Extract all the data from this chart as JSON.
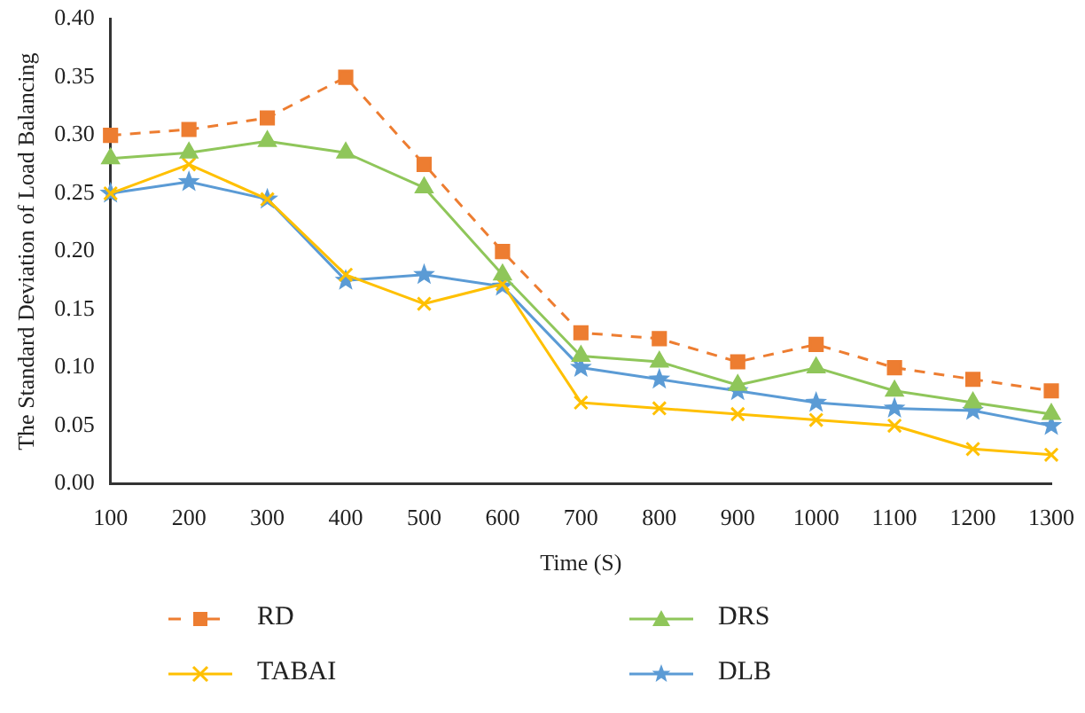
{
  "chart_data": {
    "type": "line",
    "xlabel": "Time (S)",
    "ylabel": "The Standard Deviation of Load Balancing",
    "categories": [
      "100",
      "200",
      "300",
      "400",
      "500",
      "600",
      "700",
      "800",
      "900",
      "1000",
      "1100",
      "1200",
      "1300"
    ],
    "ylim": [
      0,
      0.4
    ],
    "yticks": [
      {
        "value": 0,
        "label": "0.00"
      },
      {
        "value": 0.05,
        "label": "0.05"
      },
      {
        "value": 0.1,
        "label": "0.10"
      },
      {
        "value": 0.15,
        "label": "0.15"
      },
      {
        "value": 0.2,
        "label": "0.20"
      },
      {
        "value": 0.25,
        "label": "0.25"
      },
      {
        "value": 0.3,
        "label": "0.30"
      },
      {
        "value": 0.35,
        "label": "0.35"
      },
      {
        "value": 0.4,
        "label": "0.40"
      }
    ],
    "grid": false,
    "legend": "bottom",
    "series": [
      {
        "name": "RD",
        "color": "#ed7d31",
        "marker": "square",
        "line_style": "dashed",
        "values": [
          0.3,
          0.305,
          0.315,
          0.35,
          0.275,
          0.2,
          0.13,
          0.125,
          0.105,
          0.12,
          0.1,
          0.09,
          0.08
        ]
      },
      {
        "name": "DRS",
        "color": "#8fc65a",
        "marker": "triangle",
        "line_style": "solid",
        "values": [
          0.28,
          0.285,
          0.295,
          0.285,
          0.255,
          0.18,
          0.11,
          0.105,
          0.085,
          0.1,
          0.08,
          0.07,
          0.06
        ]
      },
      {
        "name": "TABAI",
        "color": "#ffc000",
        "marker": "cross",
        "line_style": "solid",
        "values": [
          0.25,
          0.275,
          0.245,
          0.18,
          0.155,
          0.172,
          0.07,
          0.065,
          0.06,
          0.055,
          0.05,
          0.03,
          0.025
        ]
      },
      {
        "name": "DLB",
        "color": "#5b9bd5",
        "marker": "star",
        "line_style": "solid",
        "values": [
          0.25,
          0.26,
          0.245,
          0.175,
          0.18,
          0.17,
          0.1,
          0.09,
          0.08,
          0.07,
          0.065,
          0.063,
          0.05
        ]
      }
    ]
  }
}
